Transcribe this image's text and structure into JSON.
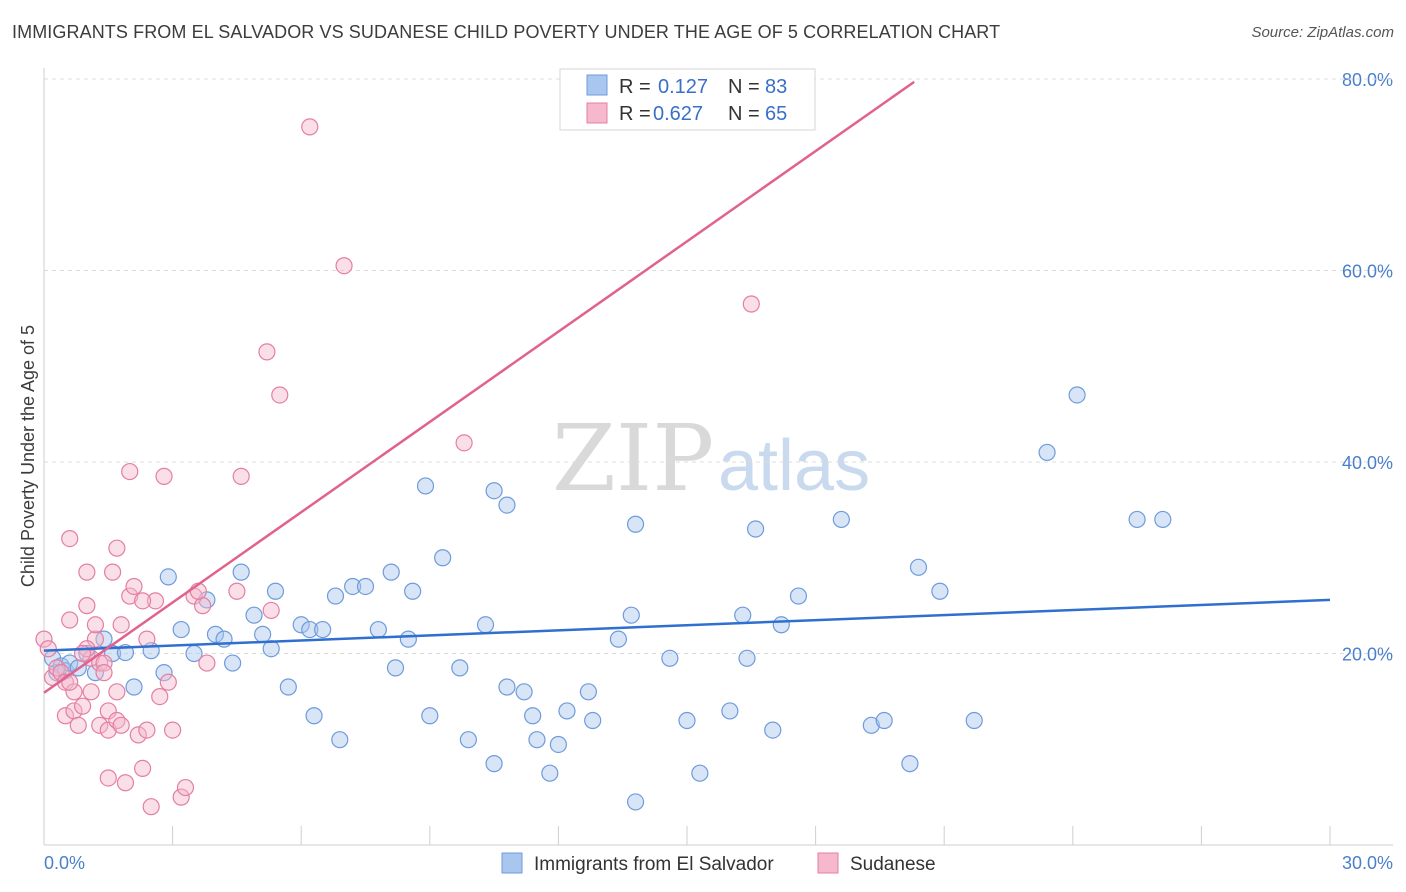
{
  "title": "IMMIGRANTS FROM EL SALVADOR VS SUDANESE CHILD POVERTY UNDER THE AGE OF 5 CORRELATION CHART",
  "source": "Source: ZipAtlas.com",
  "watermark": {
    "zip": "ZIP",
    "atlas": "atlas"
  },
  "legend_top": [
    {
      "r_label": "R =",
      "r_value": "0.127",
      "n_label": "N =",
      "n_value": "83"
    },
    {
      "r_label": "R =",
      "r_value": "0.627",
      "n_label": "N =",
      "n_value": "65"
    }
  ],
  "legend_bottom": [
    {
      "label": "Immigrants from El Salvador"
    },
    {
      "label": "Sudanese"
    }
  ],
  "colors": {
    "blue_fill": "#a9c6ee",
    "blue_stroke": "#6f9bdc",
    "blue_line": "#2f6fcf",
    "pink_fill": "#f5b8cc",
    "pink_stroke": "#e47fa1",
    "pink_line": "#e0628d",
    "grid": "#dcdcdc",
    "axis_text": "#4a7fcc"
  },
  "chart_data": {
    "type": "scatter",
    "ylabel": "Child Poverty Under the Age of 5",
    "xlabel": "",
    "xlim": [
      0,
      30
    ],
    "ylim": [
      0,
      80
    ],
    "x_tick_labels": [
      "0.0%",
      "30.0%"
    ],
    "y_tick_labels": [
      "20.0%",
      "40.0%",
      "60.0%",
      "80.0%"
    ],
    "y_ticks": [
      20,
      40,
      60,
      80
    ],
    "grid": true,
    "legend_position": "top-center",
    "series": [
      {
        "name": "Immigrants from El Salvador",
        "color": "#a9c6ee",
        "trend": {
          "x": [
            0,
            30
          ],
          "y": [
            20.3,
            25.6
          ]
        },
        "points": [
          [
            0.2,
            19.5
          ],
          [
            0.3,
            18.0
          ],
          [
            0.4,
            18.7
          ],
          [
            0.5,
            18.2
          ],
          [
            0.6,
            19.0
          ],
          [
            0.8,
            18.5
          ],
          [
            1.0,
            20.0
          ],
          [
            1.2,
            18.0
          ],
          [
            1.4,
            21.5
          ],
          [
            1.6,
            20.0
          ],
          [
            1.9,
            20.1
          ],
          [
            2.1,
            16.5
          ],
          [
            2.5,
            20.3
          ],
          [
            2.8,
            18.0
          ],
          [
            2.9,
            28.0
          ],
          [
            3.2,
            22.5
          ],
          [
            3.5,
            20.0
          ],
          [
            3.8,
            25.6
          ],
          [
            4.0,
            22.0
          ],
          [
            4.2,
            21.5
          ],
          [
            4.4,
            19.0
          ],
          [
            4.6,
            28.5
          ],
          [
            4.9,
            24.0
          ],
          [
            5.1,
            22.0
          ],
          [
            5.3,
            20.5
          ],
          [
            5.4,
            26.5
          ],
          [
            5.7,
            16.5
          ],
          [
            6.0,
            23.0
          ],
          [
            6.2,
            22.5
          ],
          [
            6.3,
            13.5
          ],
          [
            6.5,
            22.5
          ],
          [
            6.8,
            26.0
          ],
          [
            6.9,
            11.0
          ],
          [
            7.2,
            27.0
          ],
          [
            7.5,
            27.0
          ],
          [
            7.8,
            22.5
          ],
          [
            8.1,
            28.5
          ],
          [
            8.2,
            18.5
          ],
          [
            8.5,
            21.5
          ],
          [
            8.6,
            26.5
          ],
          [
            8.9,
            37.5
          ],
          [
            9.0,
            13.5
          ],
          [
            9.3,
            30.0
          ],
          [
            9.7,
            18.5
          ],
          [
            9.9,
            11.0
          ],
          [
            10.3,
            23.0
          ],
          [
            10.5,
            8.5
          ],
          [
            10.5,
            37.0
          ],
          [
            10.8,
            35.5
          ],
          [
            10.8,
            16.5
          ],
          [
            11.2,
            16.0
          ],
          [
            11.4,
            13.5
          ],
          [
            11.5,
            11.0
          ],
          [
            11.8,
            7.5
          ],
          [
            12.0,
            10.5
          ],
          [
            12.2,
            14.0
          ],
          [
            12.7,
            16.0
          ],
          [
            12.8,
            13.0
          ],
          [
            13.4,
            21.5
          ],
          [
            13.7,
            24.0
          ],
          [
            13.8,
            4.5
          ],
          [
            13.8,
            33.5
          ],
          [
            14.6,
            19.5
          ],
          [
            15.0,
            13.0
          ],
          [
            15.3,
            7.5
          ],
          [
            16.0,
            14.0
          ],
          [
            16.3,
            24.0
          ],
          [
            16.4,
            19.5
          ],
          [
            16.6,
            33.0
          ],
          [
            17.0,
            12.0
          ],
          [
            17.2,
            23.0
          ],
          [
            17.6,
            26.0
          ],
          [
            18.6,
            34.0
          ],
          [
            19.3,
            12.5
          ],
          [
            19.6,
            13.0
          ],
          [
            20.2,
            8.5
          ],
          [
            20.4,
            29.0
          ],
          [
            20.9,
            26.5
          ],
          [
            21.7,
            13.0
          ],
          [
            23.4,
            41.0
          ],
          [
            24.1,
            47.0
          ],
          [
            25.5,
            34.0
          ],
          [
            26.1,
            34.0
          ]
        ]
      },
      {
        "name": "Sudanese",
        "color": "#f5b8cc",
        "trend": {
          "x": [
            0,
            20.3
          ],
          "y": [
            15.9,
            79.7
          ]
        },
        "points": [
          [
            0.0,
            21.5
          ],
          [
            0.1,
            20.5
          ],
          [
            0.2,
            17.5
          ],
          [
            0.3,
            18.5
          ],
          [
            0.4,
            18.0
          ],
          [
            0.5,
            17.0
          ],
          [
            0.5,
            13.5
          ],
          [
            0.6,
            32.0
          ],
          [
            0.6,
            23.5
          ],
          [
            0.7,
            16.0
          ],
          [
            0.7,
            14.0
          ],
          [
            0.8,
            12.5
          ],
          [
            0.9,
            14.5
          ],
          [
            1.0,
            25.0
          ],
          [
            1.0,
            28.5
          ],
          [
            1.1,
            19.5
          ],
          [
            1.1,
            16.0
          ],
          [
            1.2,
            21.5
          ],
          [
            1.2,
            23.0
          ],
          [
            1.3,
            19.0
          ],
          [
            1.3,
            12.5
          ],
          [
            1.4,
            19.0
          ],
          [
            1.5,
            12.0
          ],
          [
            1.5,
            14.0
          ],
          [
            1.5,
            7.0
          ],
          [
            1.6,
            28.5
          ],
          [
            1.7,
            13.0
          ],
          [
            1.7,
            16.0
          ],
          [
            1.7,
            31.0
          ],
          [
            1.8,
            12.5
          ],
          [
            1.8,
            23.0
          ],
          [
            1.9,
            6.5
          ],
          [
            2.0,
            26.0
          ],
          [
            2.0,
            39.0
          ],
          [
            2.1,
            27.0
          ],
          [
            2.2,
            11.5
          ],
          [
            2.3,
            8.0
          ],
          [
            2.4,
            21.5
          ],
          [
            2.4,
            12.0
          ],
          [
            2.5,
            4.0
          ],
          [
            2.6,
            25.5
          ],
          [
            2.7,
            15.5
          ],
          [
            2.8,
            38.5
          ],
          [
            2.9,
            17.0
          ],
          [
            3.0,
            12.0
          ],
          [
            3.2,
            5.0
          ],
          [
            3.3,
            6.0
          ],
          [
            3.5,
            26.0
          ],
          [
            3.7,
            25.0
          ],
          [
            3.8,
            19.0
          ],
          [
            4.6,
            38.5
          ],
          [
            5.2,
            51.5
          ],
          [
            5.3,
            24.5
          ],
          [
            5.5,
            47.0
          ],
          [
            6.2,
            75.0
          ],
          [
            7.0,
            60.5
          ],
          [
            9.8,
            42.0
          ],
          [
            16.5,
            56.5
          ],
          [
            3.6,
            26.5
          ],
          [
            2.3,
            25.5
          ],
          [
            4.5,
            26.5
          ],
          [
            0.6,
            17.0
          ],
          [
            1.0,
            20.5
          ],
          [
            0.9,
            20.0
          ],
          [
            1.4,
            18.0
          ]
        ]
      }
    ]
  }
}
